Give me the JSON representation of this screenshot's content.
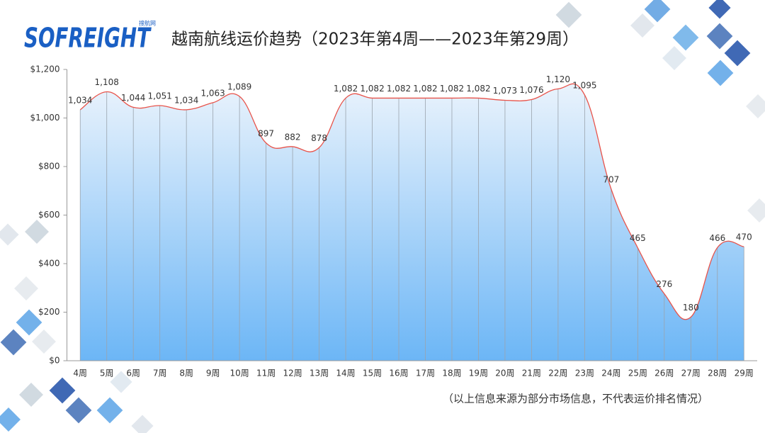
{
  "logo": "SOFREIGHT",
  "logo_sub": "搜航网",
  "chart_data": {
    "type": "area",
    "title": "越南航线运价趋势（2023年第4周——2023年第29周）",
    "note": "（以上信息来源为部分市场信息，不代表运价排名情况）",
    "categories": [
      "4周",
      "5周",
      "6周",
      "7周",
      "8周",
      "9周",
      "10周",
      "11周",
      "12周",
      "13周",
      "14周",
      "15周",
      "16周",
      "17周",
      "18周",
      "19周",
      "20周",
      "21周",
      "22周",
      "23周",
      "24周",
      "25周",
      "26周",
      "27周",
      "28周",
      "29周"
    ],
    "values": [
      1034,
      1108,
      1044,
      1051,
      1034,
      1063,
      1089,
      897,
      882,
      878,
      1082,
      1082,
      1082,
      1082,
      1082,
      1082,
      1073,
      1076,
      1120,
      1095,
      707,
      465,
      276,
      180,
      466,
      470
    ],
    "value_labels": [
      "1,034",
      "1,108",
      "1,044",
      "1,051",
      "1,034",
      "1,063",
      "1,089",
      "897",
      "882",
      "878",
      "1,082",
      "1,082",
      "1,082",
      "1,082",
      "1,082",
      "1,082",
      "1,073",
      "1,076",
      "1,120",
      "1,095",
      "707",
      "465",
      "276",
      "180",
      "466",
      "470"
    ],
    "color": "#e8534a",
    "ylim": [
      0,
      1200
    ],
    "yticks": [
      {
        "value": 0,
        "label": "$0"
      },
      {
        "value": 200,
        "label": "$200"
      },
      {
        "value": 400,
        "label": "$400"
      },
      {
        "value": 600,
        "label": "$600"
      },
      {
        "value": 800,
        "label": "$800"
      },
      {
        "value": 1000,
        "label": "$1,000"
      },
      {
        "value": 1200,
        "label": "$1,200"
      }
    ]
  }
}
